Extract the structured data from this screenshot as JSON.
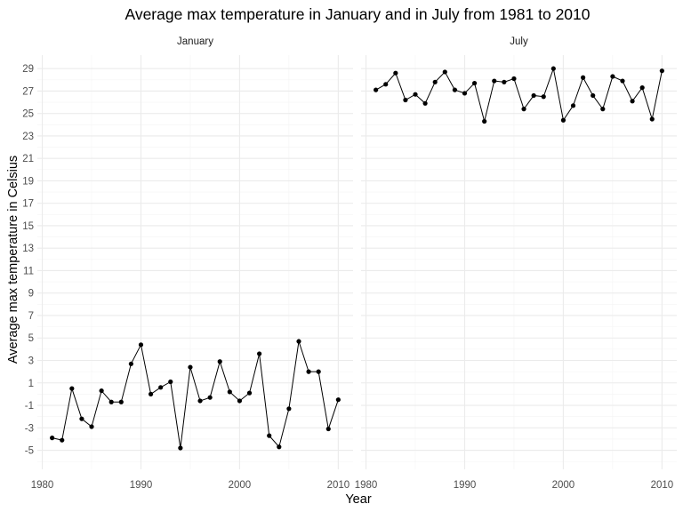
{
  "chart_data": {
    "type": "line",
    "title": "Average max temperature in January and in July from 1981 to 2010",
    "xlabel": "Year",
    "ylabel": "Average max temperature in Celsius",
    "xlim": [
      1979.5,
      2011.5
    ],
    "ylim": [
      -6.7,
      30.2
    ],
    "xticks": [
      1980,
      1990,
      2000,
      2010
    ],
    "yticks": [
      -5,
      -3,
      -1,
      1,
      3,
      5,
      7,
      9,
      11,
      13,
      15,
      17,
      19,
      21,
      23,
      25,
      27,
      29
    ],
    "grid": true,
    "panels": [
      {
        "name": "January",
        "x": [
          1981,
          1982,
          1983,
          1984,
          1985,
          1986,
          1987,
          1988,
          1989,
          1990,
          1991,
          1992,
          1993,
          1994,
          1995,
          1996,
          1997,
          1998,
          1999,
          2000,
          2001,
          2002,
          2003,
          2004,
          2005,
          2006,
          2007,
          2008,
          2009,
          2010
        ],
        "values": [
          -3.9,
          -4.1,
          0.5,
          -2.2,
          -2.9,
          0.3,
          -0.7,
          -0.7,
          2.7,
          4.4,
          0.0,
          0.6,
          1.1,
          -4.8,
          2.4,
          -0.6,
          -0.3,
          2.9,
          0.2,
          -0.6,
          0.1,
          3.6,
          -3.7,
          -4.7,
          -1.3,
          4.7,
          2.0,
          2.0,
          -3.1,
          -0.5
        ]
      },
      {
        "name": "July",
        "x": [
          1981,
          1982,
          1983,
          1984,
          1985,
          1986,
          1987,
          1988,
          1989,
          1990,
          1991,
          1992,
          1993,
          1994,
          1995,
          1996,
          1997,
          1998,
          1999,
          2000,
          2001,
          2002,
          2003,
          2004,
          2005,
          2006,
          2007,
          2008,
          2009,
          2010
        ],
        "values": [
          27.1,
          27.6,
          28.6,
          26.2,
          26.7,
          25.9,
          27.8,
          28.7,
          27.1,
          26.8,
          27.7,
          24.3,
          27.9,
          27.8,
          28.1,
          25.4,
          26.6,
          26.5,
          29.0,
          24.4,
          25.7,
          28.2,
          26.6,
          25.4,
          28.3,
          27.9,
          26.1,
          27.3,
          24.5,
          28.8
        ]
      }
    ]
  }
}
